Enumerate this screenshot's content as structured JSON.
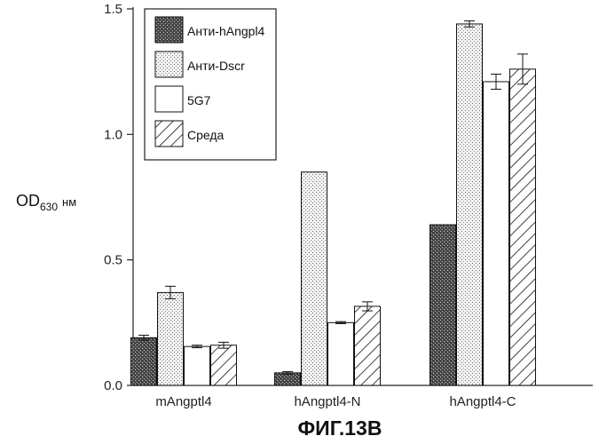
{
  "chart_data": {
    "type": "bar",
    "title": "ФИГ.13B",
    "ylabel": {
      "main": "OD",
      "sub": "630",
      "unit": "нм"
    },
    "categories": [
      "mAngptl4",
      "hAngptl4-N",
      "hAngptl4-C"
    ],
    "ylim": [
      0,
      1.5
    ],
    "yticks": [
      "0.0",
      "0.5",
      "1.0",
      "1.5"
    ],
    "grid": false,
    "legend_position": "top-left",
    "series": [
      {
        "name": "Анти-hAngpl4",
        "values": [
          0.19,
          0.05,
          0.64
        ],
        "errors": [
          0.01,
          0.005,
          0
        ],
        "pattern": "dark-speckle"
      },
      {
        "name": "Анти-Dscr",
        "values": [
          0.37,
          0.85,
          1.44
        ],
        "errors": [
          0.025,
          0,
          0.012
        ],
        "pattern": "light-stipple"
      },
      {
        "name": "5G7",
        "values": [
          0.155,
          0.25,
          1.21
        ],
        "errors": [
          0.005,
          0.004,
          0.03
        ],
        "pattern": "white"
      },
      {
        "name": "Среда",
        "values": [
          0.16,
          0.315,
          1.26
        ],
        "errors": [
          0.012,
          0.018,
          0.06
        ],
        "pattern": "hatch"
      }
    ]
  }
}
